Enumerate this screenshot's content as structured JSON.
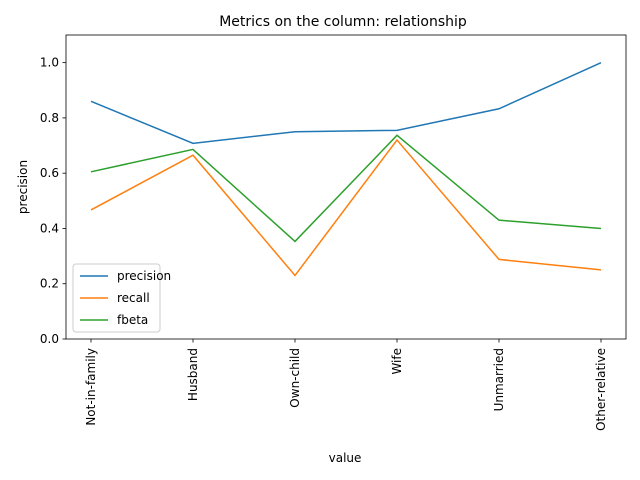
{
  "chart_data": {
    "type": "line",
    "title": "Metrics on the column: relationship",
    "xlabel": "value",
    "ylabel": "precision",
    "categories": [
      "Not-in-family",
      "Husband",
      "Own-child",
      "Wife",
      "Unmarried",
      "Other-relative"
    ],
    "ylim": [
      0,
      1.1
    ],
    "yticks": [
      0.0,
      0.2,
      0.4,
      0.6,
      0.8,
      1.0
    ],
    "ytick_labels": [
      "0.0",
      "0.2",
      "0.4",
      "0.6",
      "0.8",
      "1.0"
    ],
    "grid": false,
    "legend_position": "lower-left",
    "series": [
      {
        "name": "precision",
        "color": "#1f77b4",
        "values": [
          0.86,
          0.708,
          0.75,
          0.755,
          0.833,
          1.0
        ]
      },
      {
        "name": "recall",
        "color": "#ff7f0e",
        "values": [
          0.467,
          0.665,
          0.23,
          0.72,
          0.288,
          0.25
        ]
      },
      {
        "name": "fbeta",
        "color": "#2ca02c",
        "values": [
          0.605,
          0.686,
          0.353,
          0.737,
          0.43,
          0.4
        ]
      }
    ]
  }
}
